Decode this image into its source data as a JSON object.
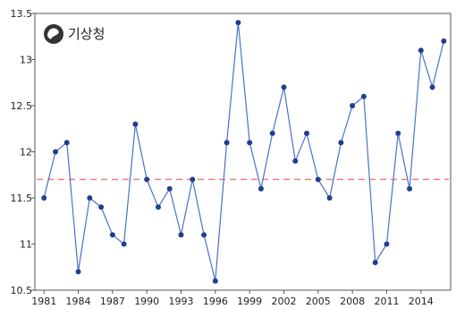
{
  "brand": {
    "logo_icon": "kma-taegeuk-logo",
    "name": "기상청"
  },
  "chart_data": {
    "type": "line",
    "x": [
      1981,
      1982,
      1983,
      1984,
      1985,
      1986,
      1987,
      1988,
      1989,
      1990,
      1991,
      1992,
      1993,
      1994,
      1995,
      1996,
      1997,
      1998,
      1999,
      2000,
      2001,
      2002,
      2003,
      2004,
      2005,
      2006,
      2007,
      2008,
      2009,
      2010,
      2011,
      2012,
      2013,
      2014,
      2015,
      2016
    ],
    "series": [
      {
        "values": [
          11.5,
          12.0,
          12.1,
          10.7,
          11.5,
          11.4,
          11.1,
          11.0,
          12.3,
          11.7,
          11.4,
          11.6,
          11.1,
          11.7,
          11.1,
          10.6,
          12.1,
          13.4,
          12.1,
          11.6,
          12.2,
          12.7,
          11.9,
          12.2,
          11.7,
          11.5,
          12.1,
          12.5,
          12.6,
          10.8,
          11.0,
          12.2,
          11.6,
          13.1,
          12.7,
          13.2
        ],
        "color": "#4a72c8"
      }
    ],
    "reference_line": {
      "value": 11.7,
      "style": "dashed",
      "color": "#f08080"
    },
    "xlim": [
      1980.2,
      2016.6
    ],
    "ylim": [
      10.5,
      13.5
    ],
    "x_ticks": [
      "1981",
      "1984",
      "1987",
      "1990",
      "1993",
      "1996",
      "1999",
      "2002",
      "2005",
      "2008",
      "2011",
      "2014"
    ],
    "y_ticks": [
      "10.5",
      "11",
      "11.5",
      "12",
      "12.5",
      "13",
      "13.5"
    ],
    "grid": false,
    "title": "",
    "xlabel": "",
    "ylabel": ""
  }
}
